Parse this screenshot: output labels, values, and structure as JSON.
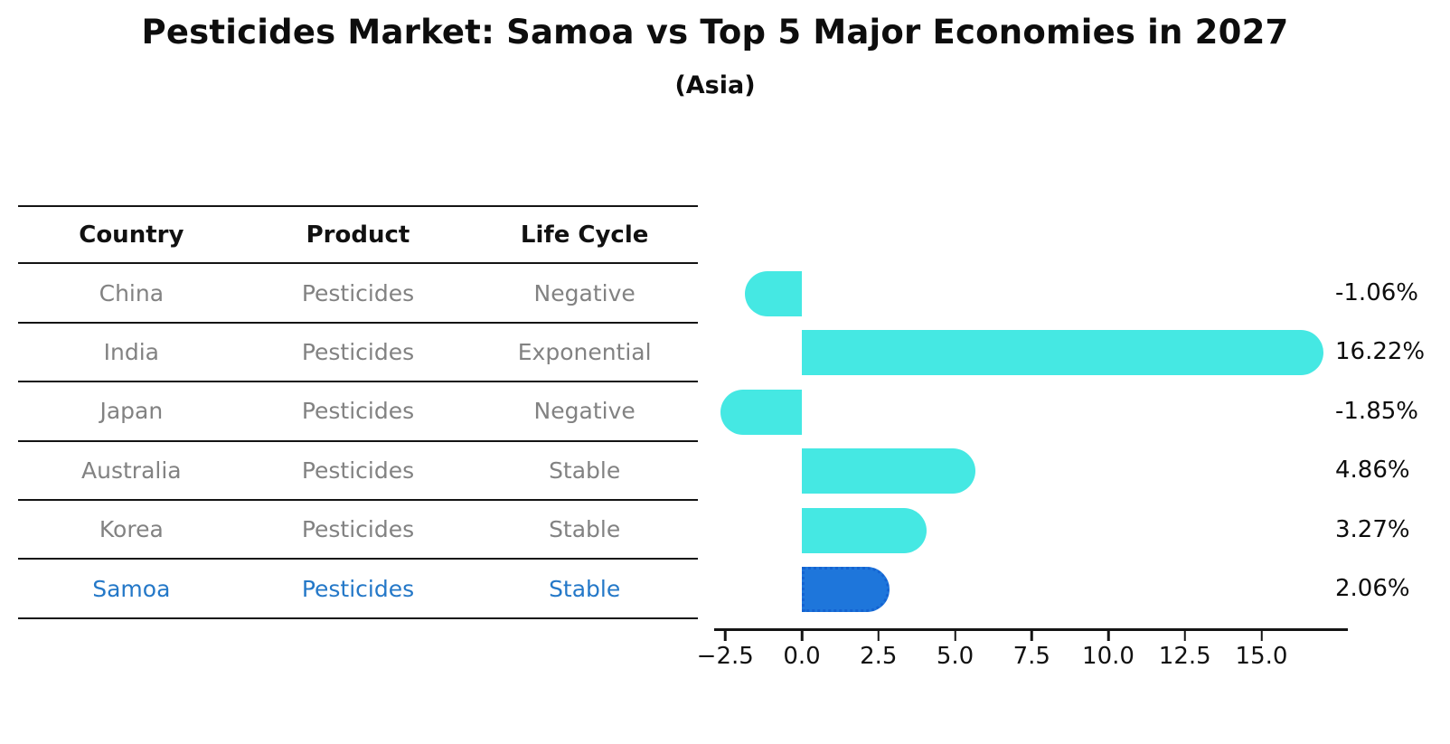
{
  "title": "Pesticides Market: Samoa vs Top 5 Major Economies in 2027",
  "subtitle": "(Asia)",
  "table": {
    "headers": [
      "Country",
      "Product",
      "Life Cycle"
    ],
    "rows": [
      {
        "country": "China",
        "product": "Pesticides",
        "life_cycle": "Negative",
        "highlight": false
      },
      {
        "country": "India",
        "product": "Pesticides",
        "life_cycle": "Exponential",
        "highlight": false
      },
      {
        "country": "Japan",
        "product": "Pesticides",
        "life_cycle": "Negative",
        "highlight": false
      },
      {
        "country": "Australia",
        "product": "Pesticides",
        "life_cycle": "Stable",
        "highlight": false
      },
      {
        "country": "Korea",
        "product": "Pesticides",
        "life_cycle": "Stable",
        "highlight": false
      },
      {
        "country": "Samoa",
        "product": "Pesticides",
        "life_cycle": "Stable",
        "highlight": true
      }
    ]
  },
  "chart_data": {
    "type": "bar",
    "orientation": "horizontal",
    "title": "Pesticides Market: Samoa vs Top 5 Major Economies in 2027",
    "subtitle": "(Asia)",
    "categories": [
      "China",
      "India",
      "Japan",
      "Australia",
      "Korea",
      "Samoa"
    ],
    "values": [
      -1.06,
      16.22,
      -1.85,
      4.86,
      3.27,
      2.06
    ],
    "value_labels": [
      "-1.06%",
      "16.22%",
      "-1.85%",
      "4.86%",
      "3.27%",
      "2.06%"
    ],
    "highlight_category": "Samoa",
    "highlight_index": 5,
    "xlim": [
      -2.86,
      17.8
    ],
    "x_ticks": [
      -2.5,
      0,
      2.5,
      5,
      7.5,
      10,
      12.5,
      15
    ],
    "x_tick_labels": [
      "−2.5",
      "0.0",
      "2.5",
      "5.0",
      "7.5",
      "10.0",
      "12.5",
      "15.0"
    ],
    "grid": false,
    "legend": "none",
    "bar_color": "#45e8e3",
    "highlight_bar_color": "#1e76db",
    "highlight_border_color": "#1463d2",
    "axis_color": "#141414",
    "muted_text_color": "#828282",
    "highlight_text_color": "#2478c8"
  }
}
